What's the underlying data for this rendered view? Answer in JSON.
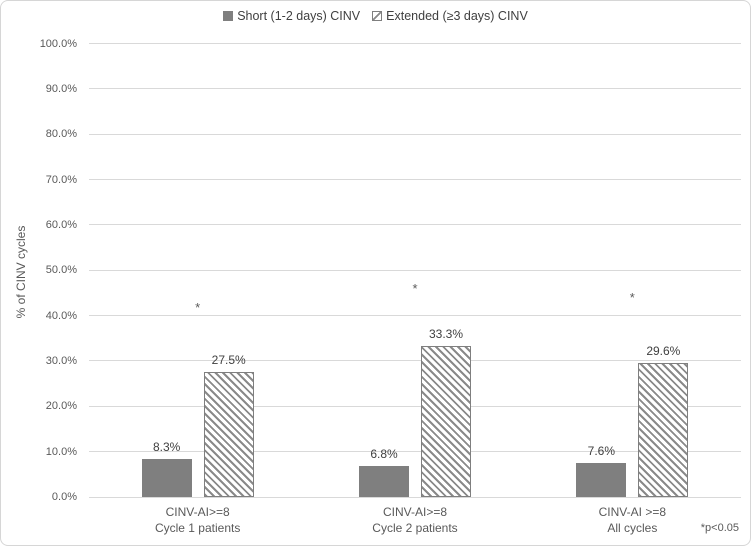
{
  "chart_data": {
    "type": "bar",
    "title": "",
    "ylabel": "% of CINV cycles",
    "xlabel": "",
    "ylim": [
      0,
      100
    ],
    "ytick_step": 10,
    "ytick_suffix": "%",
    "grid": true,
    "legend_position": "top",
    "categories": [
      {
        "line1": "CINV-AI>=8",
        "line2": "Cycle 1 patients"
      },
      {
        "line1": "CINV-AI>=8",
        "line2": "Cycle 2 patients"
      },
      {
        "line1": "CINV-AI >=8",
        "line2": "All cycles"
      }
    ],
    "series": [
      {
        "name": "Short (1-2 days) CINV",
        "style": "solid",
        "values": [
          8.3,
          6.8,
          7.6
        ],
        "labels": [
          "8.3%",
          "6.8%",
          "7.6%"
        ]
      },
      {
        "name": "Extended (≥3 days) CINV",
        "style": "hatched",
        "values": [
          27.5,
          33.3,
          29.6
        ],
        "labels": [
          "27.5%",
          "33.3%",
          "29.6%"
        ]
      }
    ],
    "annotations": [
      {
        "text": "*",
        "group": 0,
        "y_pct": 42
      },
      {
        "text": "*",
        "group": 1,
        "y_pct": 46
      },
      {
        "text": "*",
        "group": 2,
        "y_pct": 44
      }
    ],
    "footnote": "*p<0.05",
    "colors": {
      "solid_bar": "#7f7f7f",
      "hatch_line": "#8a8a8a",
      "hatch_bg": "#ffffff",
      "hatch_border": "#7f7f7f",
      "gridline": "#d9d9d9",
      "tick_text": "#595959",
      "label_text": "#404040"
    }
  }
}
